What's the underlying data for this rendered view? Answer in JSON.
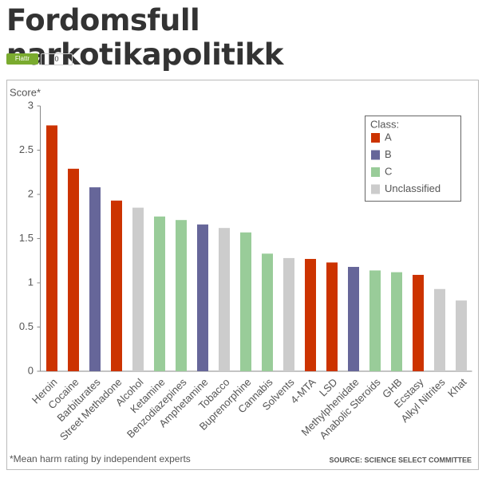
{
  "title": "Fordomsfull narkotikapolitikk",
  "flattr": {
    "label": "Flattr",
    "count": 0
  },
  "chart_data": {
    "type": "bar",
    "y_label": "Score*",
    "categories": [
      "Heroin",
      "Cocaine",
      "Barbiturates",
      "Street Methadone",
      "Alcohol",
      "Ketamine",
      "Benzodiazepines",
      "Amphetamine",
      "Tobacco",
      "Buprenorphine",
      "Cannabis",
      "Solvents",
      "4-MTA",
      "LSD",
      "Methylphenidate",
      "Anabolic Steroids",
      "GHB",
      "Ecstasy",
      "Alkyl Nitrites",
      "Khat"
    ],
    "values": [
      2.78,
      2.29,
      2.08,
      1.93,
      1.85,
      1.75,
      1.71,
      1.66,
      1.62,
      1.57,
      1.33,
      1.28,
      1.27,
      1.23,
      1.18,
      1.14,
      1.12,
      1.09,
      0.93,
      0.8
    ],
    "colors": [
      "#cc3300",
      "#cc3300",
      "#666699",
      "#cc3300",
      "#cccccc",
      "#99cc99",
      "#99cc99",
      "#666699",
      "#cccccc",
      "#99cc99",
      "#99cc99",
      "#cccccc",
      "#cc3300",
      "#cc3300",
      "#666699",
      "#99cc99",
      "#99cc99",
      "#cc3300",
      "#cccccc",
      "#cccccc"
    ],
    "ylim": [
      0,
      3
    ],
    "yticks": [
      0,
      0.5,
      1,
      1.5,
      2,
      2.5,
      3
    ],
    "legend": {
      "title": "Class:",
      "items": [
        {
          "name": "A",
          "color": "#cc3300"
        },
        {
          "name": "B",
          "color": "#666699"
        },
        {
          "name": "C",
          "color": "#99cc99"
        },
        {
          "name": "Unclassified",
          "color": "#cccccc"
        }
      ]
    },
    "footnote": "*Mean harm rating by independent experts",
    "source": "SOURCE: SCIENCE SELECT COMMITTEE"
  }
}
